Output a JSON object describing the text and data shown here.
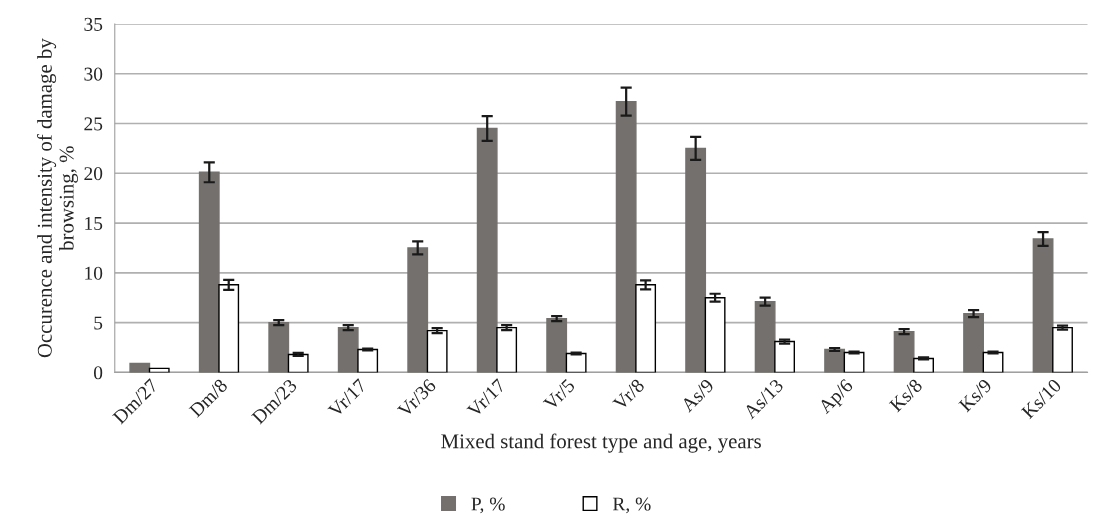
{
  "chart_data": {
    "type": "bar",
    "xlabel": "Mixed stand forest type and age, years",
    "ylabel": "Occurence and intensity of damage by browsing, %",
    "categories": [
      "Dm/27",
      "Dm/8",
      "Dm/23",
      "Vr/17",
      "Vr/36",
      "Vr/17",
      "Vr/5",
      "Vr/8",
      "As/9",
      "As/13",
      "Ap/6",
      "Ks/8",
      "Ks/9",
      "Ks/10"
    ],
    "series": [
      {
        "name": "P, %",
        "color": "#73706d",
        "values": [
          0.9,
          20.1,
          5.0,
          4.5,
          12.5,
          24.5,
          5.4,
          27.2,
          22.5,
          7.1,
          2.3,
          4.1,
          5.9,
          13.4
        ],
        "errors": [
          null,
          1.0,
          0.25,
          0.25,
          0.65,
          1.25,
          0.25,
          1.4,
          1.15,
          0.4,
          0.15,
          0.25,
          0.35,
          0.7
        ]
      },
      {
        "name": "R, %",
        "color": "#ffffff",
        "values": [
          0.4,
          8.8,
          1.8,
          2.3,
          4.2,
          4.5,
          1.9,
          8.8,
          7.5,
          3.1,
          2.0,
          1.4,
          2.0,
          4.5
        ],
        "errors": [
          null,
          0.5,
          0.15,
          0.1,
          0.25,
          0.25,
          0.1,
          0.45,
          0.4,
          0.2,
          0.1,
          0.1,
          0.1,
          0.2
        ]
      }
    ],
    "ylim": [
      0,
      35
    ],
    "yticks": [
      0,
      5,
      10,
      15,
      20,
      25,
      30,
      35
    ],
    "grid": "y",
    "legend": "bottom"
  }
}
